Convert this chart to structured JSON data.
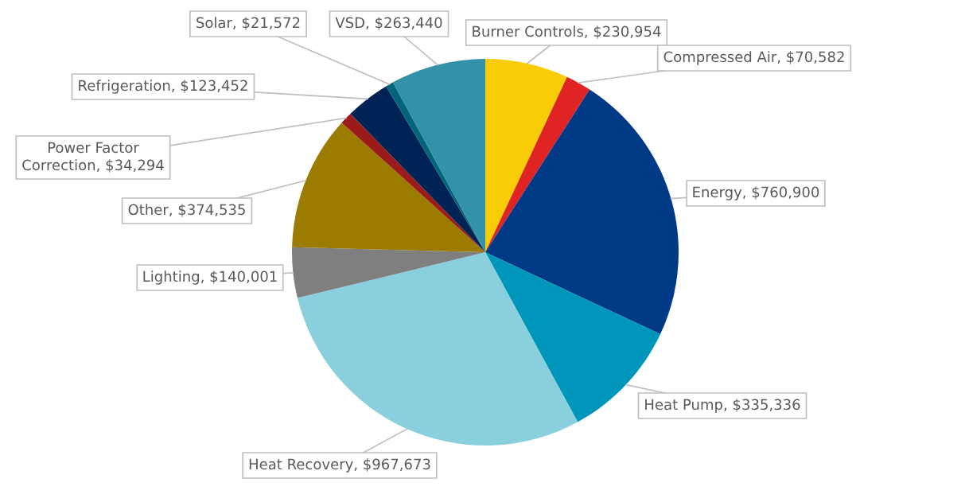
{
  "chart_data": {
    "type": "pie",
    "categories": [
      "Burner Controls",
      "Compressed Air",
      "Energy",
      "Heat Pump",
      "Heat Recovery",
      "Lighting",
      "Other",
      "Power Factor Correction",
      "Refrigeration",
      "Solar",
      "VSD"
    ],
    "values": [
      230954,
      70582,
      760900,
      335336,
      967673,
      140001,
      374535,
      34294,
      123452,
      21572,
      263440
    ],
    "value_labels": [
      "$230,954",
      "$70,582",
      "$760,900",
      "$335,336",
      "$967,673",
      "$140,001",
      "$374,535",
      "$34,294",
      "$123,452",
      "$21,572",
      "$263,440"
    ],
    "colors": [
      "#f9cc08",
      "#e02424",
      "#003a86",
      "#0096bb",
      "#89cfdd",
      "#7f7f7f",
      "#9b7b00",
      "#9b1b1b",
      "#002355",
      "#00657a",
      "#3392a8"
    ]
  }
}
